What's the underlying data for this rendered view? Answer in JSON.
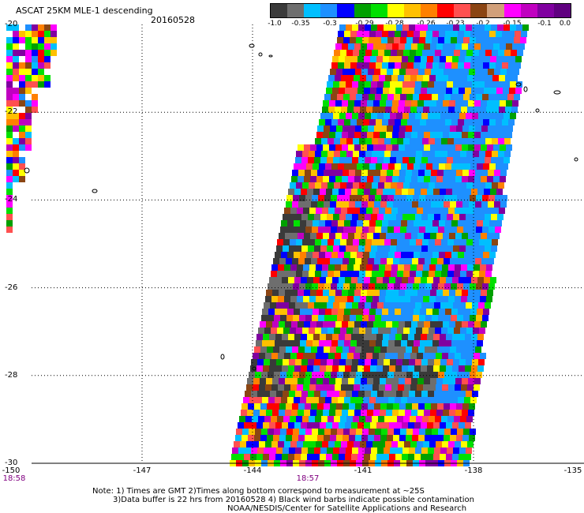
{
  "header": {
    "title": "ASCAT 25KM MLE-1 descending",
    "date": "20160528"
  },
  "colorbar": {
    "colors": [
      "#3a3a3a",
      "#6e6e6e",
      "#00bfff",
      "#1e90ff",
      "#0000ff",
      "#00a000",
      "#00e000",
      "#ffff00",
      "#ffc000",
      "#ff8000",
      "#ff0000",
      "#ff5050",
      "#8b4513",
      "#d2a07a",
      "#ff00ff",
      "#c000c0",
      "#8000a0",
      "#600080"
    ],
    "labels": [
      "-1.0",
      "-0.35",
      "-0.3",
      "-0.29",
      "-0.28",
      "-0.26",
      "-0.23",
      "-0.2",
      "-0.15",
      "-0.1",
      "0.0"
    ]
  },
  "axes": {
    "lat_labels": [
      "-20",
      "-22",
      "-24",
      "-26",
      "-28",
      "-30"
    ],
    "lon_labels": [
      "-150",
      "-147",
      "-144",
      "-141",
      "-138",
      "-135"
    ],
    "time_labels": [
      {
        "text": "18:58",
        "lon": -150
      },
      {
        "text": "18:57",
        "lon": -142.5
      }
    ]
  },
  "swath": {
    "palette": [
      "#3a3a3a",
      "#6e6e6e",
      "#00bfff",
      "#1e90ff",
      "#0000ff",
      "#00a000",
      "#00e000",
      "#ffff00",
      "#ffc000",
      "#ff8000",
      "#ff0000",
      "#ff5050",
      "#8b4513",
      "#ff00ff",
      "#c000c0",
      "#8000a0"
    ]
  },
  "notes": {
    "line1": "Note: 1) Times are GMT 2)Times along bottom correspond to measurement at ~25S",
    "line2": "3)Data buffer is 22 hrs from 20160528 4) Black wind barbs indicate possible contamination",
    "line3": "NOAA/NESDIS/Center for Satellite Applications and Research"
  }
}
